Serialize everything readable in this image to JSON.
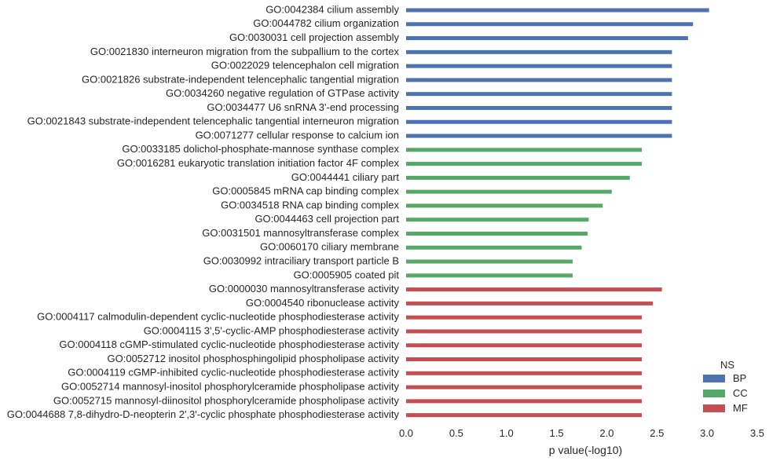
{
  "chart_data": {
    "type": "bar",
    "orientation": "horizontal",
    "xlabel": "p value(-log10)",
    "ylabel": "",
    "xlim": [
      0,
      3.5
    ],
    "xticks": [
      "0.0",
      "0.5",
      "1.0",
      "1.5",
      "2.0",
      "2.5",
      "3.0",
      "3.5"
    ],
    "grid": false,
    "legend": {
      "title": "NS",
      "placement": "bottom-right",
      "entries": [
        {
          "name": "BP",
          "color": "#4c72b0"
        },
        {
          "name": "CC",
          "color": "#55a868"
        },
        {
          "name": "MF",
          "color": "#c44e52"
        }
      ]
    },
    "bars": [
      {
        "label": "GO:0042384 cilium assembly",
        "value": 3.02,
        "group": "BP"
      },
      {
        "label": "GO:0044782 cilium organization",
        "value": 2.86,
        "group": "BP"
      },
      {
        "label": "GO:0030031 cell projection assembly",
        "value": 2.81,
        "group": "BP"
      },
      {
        "label": "GO:0021830 interneuron migration from the subpallium to the cortex",
        "value": 2.65,
        "group": "BP"
      },
      {
        "label": "GO:0022029 telencephalon cell migration",
        "value": 2.65,
        "group": "BP"
      },
      {
        "label": "GO:0021826 substrate-independent telencephalic tangential migration",
        "value": 2.65,
        "group": "BP"
      },
      {
        "label": "GO:0034260 negative regulation of GTPase activity",
        "value": 2.65,
        "group": "BP"
      },
      {
        "label": "GO:0034477 U6 snRNA 3'-end processing",
        "value": 2.65,
        "group": "BP"
      },
      {
        "label": "GO:0021843 substrate-independent telencephalic tangential interneuron migration",
        "value": 2.65,
        "group": "BP"
      },
      {
        "label": "GO:0071277 cellular response to calcium ion",
        "value": 2.65,
        "group": "BP"
      },
      {
        "label": "GO:0033185 dolichol-phosphate-mannose synthase complex",
        "value": 2.35,
        "group": "CC"
      },
      {
        "label": "GO:0016281 eukaryotic translation initiation factor 4F complex",
        "value": 2.35,
        "group": "CC"
      },
      {
        "label": "GO:0044441 ciliary part",
        "value": 2.23,
        "group": "CC"
      },
      {
        "label": "GO:0005845 mRNA cap binding complex",
        "value": 2.05,
        "group": "CC"
      },
      {
        "label": "GO:0034518 RNA cap binding complex",
        "value": 1.96,
        "group": "CC"
      },
      {
        "label": "GO:0044463 cell projection part",
        "value": 1.82,
        "group": "CC"
      },
      {
        "label": "GO:0031501 mannosyltransferase complex",
        "value": 1.81,
        "group": "CC"
      },
      {
        "label": "GO:0060170 ciliary membrane",
        "value": 1.75,
        "group": "CC"
      },
      {
        "label": "GO:0030992 intraciliary transport particle B",
        "value": 1.66,
        "group": "CC"
      },
      {
        "label": "GO:0005905 coated pit",
        "value": 1.66,
        "group": "CC"
      },
      {
        "label": "GO:0000030 mannosyltransferase activity",
        "value": 2.55,
        "group": "MF"
      },
      {
        "label": "GO:0004540 ribonuclease activity",
        "value": 2.46,
        "group": "MF"
      },
      {
        "label": "GO:0004117 calmodulin-dependent cyclic-nucleotide phosphodiesterase activity",
        "value": 2.35,
        "group": "MF"
      },
      {
        "label": "GO:0004115 3',5'-cyclic-AMP phosphodiesterase activity",
        "value": 2.35,
        "group": "MF"
      },
      {
        "label": "GO:0004118 cGMP-stimulated cyclic-nucleotide phosphodiesterase activity",
        "value": 2.35,
        "group": "MF"
      },
      {
        "label": "GO:0052712 inositol phosphosphingolipid phospholipase activity",
        "value": 2.35,
        "group": "MF"
      },
      {
        "label": "GO:0004119 cGMP-inhibited cyclic-nucleotide phosphodiesterase activity",
        "value": 2.35,
        "group": "MF"
      },
      {
        "label": "GO:0052714 mannosyl-inositol phosphorylceramide phospholipase activity",
        "value": 2.35,
        "group": "MF"
      },
      {
        "label": "GO:0052715 mannosyl-diinositol phosphorylceramide phospholipase activity",
        "value": 2.35,
        "group": "MF"
      },
      {
        "label": "GO:0044688 7,8-dihydro-D-neopterin 2',3'-cyclic phosphate phosphodiesterase activity",
        "value": 2.35,
        "group": "MF"
      }
    ]
  }
}
